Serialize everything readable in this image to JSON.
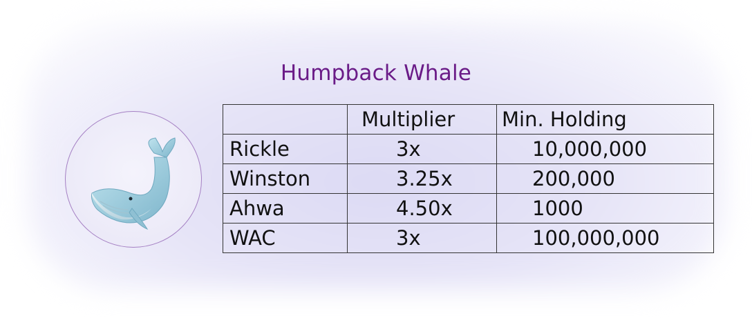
{
  "header": {
    "title": "Humpback Whale"
  },
  "avatar": {
    "icon": "humpback-whale-icon"
  },
  "table": {
    "columns": [
      "",
      "Multiplier",
      "Min. Holding"
    ],
    "rows": [
      {
        "name": "Rickle",
        "multiplier": "3x",
        "min_holding": "10,000,000"
      },
      {
        "name": "Winston",
        "multiplier": "3.25x",
        "min_holding": "200,000"
      },
      {
        "name": "Ahwa",
        "multiplier": "4.50x",
        "min_holding": "1000"
      },
      {
        "name": "WAC",
        "multiplier": "3x",
        "min_holding": "100,000,000"
      }
    ]
  },
  "colors": {
    "title": "#6a1b87",
    "avatar_border": "#a47fc3",
    "glow": "#dcdaf4"
  }
}
